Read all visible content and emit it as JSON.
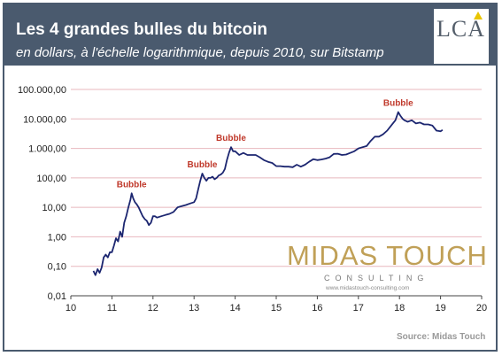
{
  "header": {
    "title": "Les 4 grandes bulles du bitcoin",
    "subtitle": "en dollars, à l'échelle logarithmique, depuis 2010, sur Bitstamp"
  },
  "logo": {
    "text": "LCA"
  },
  "watermark": {
    "name": "MIDAS TOUCH",
    "tagline": "CONSULTING",
    "url": "www.midastouch-consulting.com"
  },
  "source": "Source: Midas Touch",
  "colors": {
    "header_bg": "#4a5a6e",
    "line": "#1c2670",
    "grid": "#e8b7be",
    "bubble_label": "#c0392b",
    "watermark": "#b58f3a"
  },
  "chart_data": {
    "type": "line",
    "title": "Les 4 grandes bulles du bitcoin",
    "y_scale": "log",
    "ylim": [
      0.01,
      100000
    ],
    "xlim": [
      10,
      20
    ],
    "x_ticks": [
      "10",
      "11",
      "12",
      "13",
      "14",
      "15",
      "16",
      "17",
      "18",
      "19",
      "20"
    ],
    "y_ticks": [
      "0,01",
      "0,10",
      "1,00",
      "10,00",
      "100,00",
      "1.000,00",
      "10.000,00",
      "100.000,00"
    ],
    "grid": "horizontal",
    "series": [
      {
        "values": [
          [
            10.55,
            0.07
          ],
          [
            10.6,
            0.05
          ],
          [
            10.65,
            0.08
          ],
          [
            10.7,
            0.06
          ],
          [
            10.75,
            0.09
          ],
          [
            10.8,
            0.2
          ],
          [
            10.85,
            0.25
          ],
          [
            10.9,
            0.2
          ],
          [
            10.95,
            0.3
          ],
          [
            11.0,
            0.3
          ],
          [
            11.05,
            0.5
          ],
          [
            11.1,
            0.9
          ],
          [
            11.15,
            0.7
          ],
          [
            11.2,
            1.5
          ],
          [
            11.25,
            1.0
          ],
          [
            11.3,
            3.0
          ],
          [
            11.35,
            5.0
          ],
          [
            11.4,
            10.0
          ],
          [
            11.45,
            18.0
          ],
          [
            11.48,
            30.0
          ],
          [
            11.52,
            20.0
          ],
          [
            11.56,
            15.0
          ],
          [
            11.6,
            13.0
          ],
          [
            11.65,
            10.0
          ],
          [
            11.7,
            7.0
          ],
          [
            11.75,
            5.0
          ],
          [
            11.8,
            4.0
          ],
          [
            11.85,
            3.5
          ],
          [
            11.9,
            2.5
          ],
          [
            11.95,
            3.0
          ],
          [
            12.0,
            5.0
          ],
          [
            12.05,
            5.0
          ],
          [
            12.1,
            4.5
          ],
          [
            12.2,
            5.0
          ],
          [
            12.3,
            5.5
          ],
          [
            12.4,
            6.0
          ],
          [
            12.5,
            7.0
          ],
          [
            12.6,
            10.0
          ],
          [
            12.7,
            11.0
          ],
          [
            12.8,
            12.0
          ],
          [
            12.9,
            13.5
          ],
          [
            13.0,
            15.0
          ],
          [
            13.05,
            20.0
          ],
          [
            13.1,
            40.0
          ],
          [
            13.15,
            80.0
          ],
          [
            13.2,
            140.0
          ],
          [
            13.25,
            100.0
          ],
          [
            13.3,
            80.0
          ],
          [
            13.35,
            100.0
          ],
          [
            13.4,
            100.0
          ],
          [
            13.45,
            110.0
          ],
          [
            13.5,
            90.0
          ],
          [
            13.55,
            100.0
          ],
          [
            13.6,
            120.0
          ],
          [
            13.65,
            130.0
          ],
          [
            13.7,
            150.0
          ],
          [
            13.75,
            200.0
          ],
          [
            13.8,
            400.0
          ],
          [
            13.85,
            700.0
          ],
          [
            13.9,
            1100.0
          ],
          [
            13.95,
            800.0
          ],
          [
            14.0,
            800.0
          ],
          [
            14.1,
            600.0
          ],
          [
            14.2,
            700.0
          ],
          [
            14.3,
            600.0
          ],
          [
            14.4,
            600.0
          ],
          [
            14.5,
            600.0
          ],
          [
            14.6,
            500.0
          ],
          [
            14.7,
            400.0
          ],
          [
            14.8,
            350.0
          ],
          [
            14.9,
            320.0
          ],
          [
            15.0,
            250.0
          ],
          [
            15.1,
            250.0
          ],
          [
            15.2,
            240.0
          ],
          [
            15.3,
            240.0
          ],
          [
            15.4,
            230.0
          ],
          [
            15.5,
            280.0
          ],
          [
            15.6,
            240.0
          ],
          [
            15.7,
            280.0
          ],
          [
            15.8,
            350.0
          ],
          [
            15.9,
            430.0
          ],
          [
            16.0,
            400.0
          ],
          [
            16.1,
            420.0
          ],
          [
            16.2,
            450.0
          ],
          [
            16.3,
            500.0
          ],
          [
            16.4,
            650.0
          ],
          [
            16.5,
            660.0
          ],
          [
            16.6,
            600.0
          ],
          [
            16.7,
            620.0
          ],
          [
            16.8,
            700.0
          ],
          [
            16.9,
            800.0
          ],
          [
            17.0,
            1000.0
          ],
          [
            17.1,
            1100.0
          ],
          [
            17.2,
            1200.0
          ],
          [
            17.3,
            1800.0
          ],
          [
            17.4,
            2500.0
          ],
          [
            17.5,
            2500.0
          ],
          [
            17.6,
            3000.0
          ],
          [
            17.7,
            4000.0
          ],
          [
            17.8,
            6000.0
          ],
          [
            17.9,
            9000.0
          ],
          [
            17.97,
            17000.0
          ],
          [
            18.02,
            13000.0
          ],
          [
            18.08,
            10000.0
          ],
          [
            18.12,
            9000.0
          ],
          [
            18.2,
            8000.0
          ],
          [
            18.3,
            9000.0
          ],
          [
            18.4,
            7000.0
          ],
          [
            18.5,
            7500.0
          ],
          [
            18.6,
            6500.0
          ],
          [
            18.7,
            6500.0
          ],
          [
            18.8,
            6000.0
          ],
          [
            18.9,
            4000.0
          ],
          [
            19.0,
            3800.0
          ],
          [
            19.05,
            4200.0
          ]
        ]
      }
    ],
    "annotations": [
      {
        "text": "Bubble",
        "x": 11.48,
        "y": 30
      },
      {
        "text": "Bubble",
        "x": 13.2,
        "y": 140
      },
      {
        "text": "Bubble",
        "x": 13.9,
        "y": 1100
      },
      {
        "text": "Bubble",
        "x": 17.97,
        "y": 17000
      }
    ]
  }
}
